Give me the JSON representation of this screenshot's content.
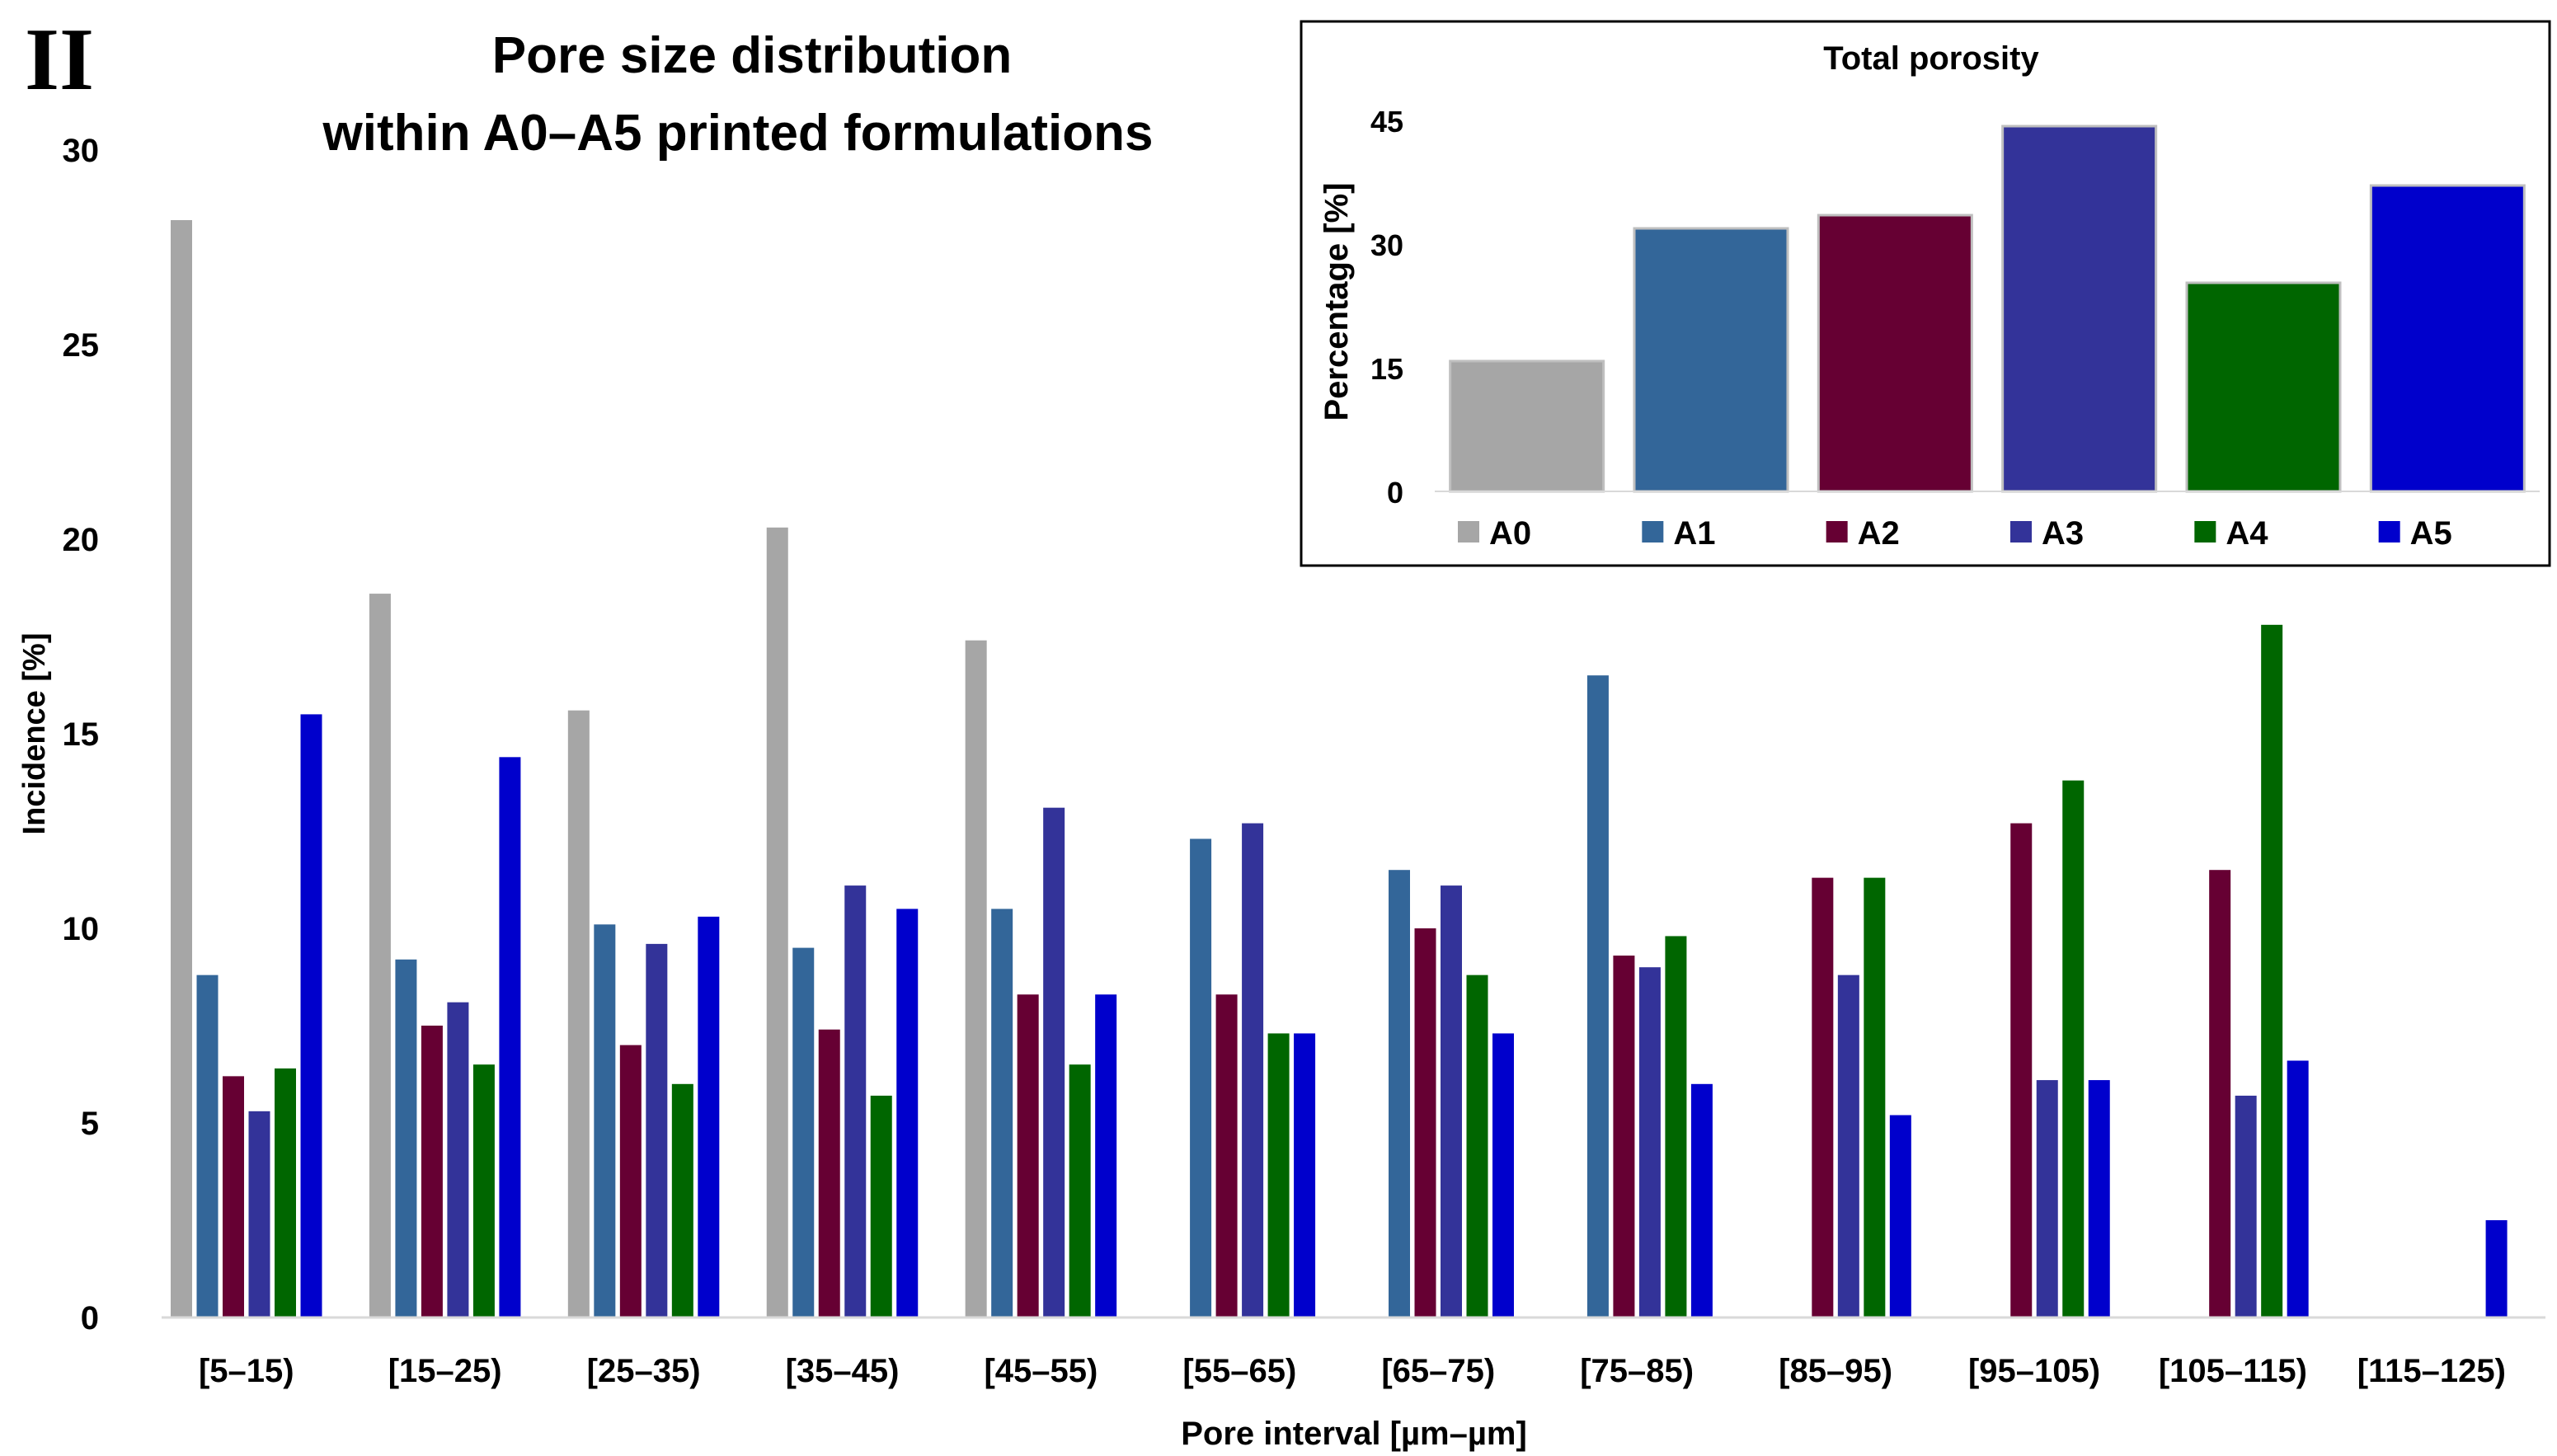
{
  "panel_label": "II",
  "chart_data": [
    {
      "type": "bar",
      "title": [
        "Pore size distribution",
        "within A0–A5 printed formulations"
      ],
      "xlabel": "Pore interval [µm–µm]",
      "ylabel": "Incidence [%]",
      "ylim": [
        0,
        30
      ],
      "yticks": [
        "0",
        "5",
        "10",
        "15",
        "20",
        "25",
        "30"
      ],
      "grid": false,
      "categories": [
        "[5–15)",
        "[15–25)",
        "[25–35)",
        "[35–45)",
        "[45–55)",
        "[55–65)",
        "[65–75)",
        "[75–85)",
        "[85–95)",
        "[95–105)",
        "[105–115)",
        "[115–125)"
      ],
      "series": [
        {
          "name": "A0",
          "color": "#a6a6a6",
          "values": [
            28.2,
            18.6,
            15.6,
            20.3,
            17.4,
            null,
            null,
            null,
            null,
            null,
            null,
            null
          ]
        },
        {
          "name": "A1",
          "color": "#336699",
          "values": [
            8.8,
            9.2,
            10.1,
            9.5,
            10.5,
            12.3,
            11.5,
            16.5,
            null,
            null,
            null,
            null
          ]
        },
        {
          "name": "A2",
          "color": "#660033",
          "values": [
            6.2,
            7.5,
            7.0,
            7.4,
            8.3,
            8.3,
            10.0,
            9.3,
            11.3,
            12.7,
            11.5,
            null
          ]
        },
        {
          "name": "A3",
          "color": "#333399",
          "values": [
            5.3,
            8.1,
            9.6,
            11.1,
            13.1,
            12.7,
            11.1,
            9.0,
            8.8,
            6.1,
            5.7,
            null
          ]
        },
        {
          "name": "A4",
          "color": "#006600",
          "values": [
            6.4,
            6.5,
            6.0,
            5.7,
            6.5,
            7.3,
            8.8,
            9.8,
            11.3,
            13.8,
            17.8,
            null
          ]
        },
        {
          "name": "A5",
          "color": "#0000cc",
          "values": [
            15.5,
            14.4,
            10.3,
            10.5,
            8.3,
            7.3,
            7.3,
            6.0,
            5.2,
            6.1,
            6.6,
            2.5
          ]
        }
      ]
    },
    {
      "type": "bar",
      "title": "Total porosity",
      "ylabel": "Percentage [%]",
      "ylim": [
        0,
        45
      ],
      "yticks": [
        "0",
        "15",
        "30",
        "45"
      ],
      "grid": false,
      "legend": "bottom",
      "categories": [
        "A0",
        "A1",
        "A2",
        "A3",
        "A4",
        "A5"
      ],
      "values": [
        15.8,
        31.9,
        33.5,
        44.3,
        25.3,
        37.1
      ],
      "colors": [
        "#a6a6a6",
        "#336699",
        "#660033",
        "#333399",
        "#006600",
        "#0000cc"
      ]
    }
  ]
}
